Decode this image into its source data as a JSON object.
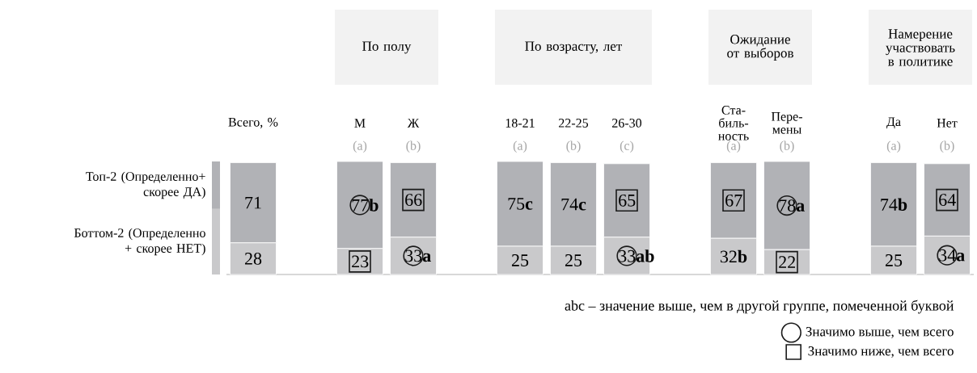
{
  "chart_data": {
    "type": "bar",
    "stacked": true,
    "legend": "bottom right",
    "tick_labels": "x",
    "categories": [
      "Всего, %",
      null,
      "М",
      "Ж",
      null,
      "18-21",
      "22-25",
      "26-30",
      null,
      "Ста-биль-ность",
      "Пере-мены",
      null,
      "Да",
      "Нет"
    ],
    "series": [
      {
        "name": "Боттом-2 (Определенно + скорее НЕТ)",
        "color": "#c9c9cb",
        "values": [
          28,
          null,
          23,
          33,
          null,
          25,
          25,
          33,
          null,
          32,
          22,
          null,
          25,
          34
        ],
        "value_labels": [
          "28",
          null,
          "23",
          "33**a**",
          null,
          "25",
          "25",
          "33**ab**",
          null,
          "32**b**",
          "22",
          null,
          "25",
          "34**a**"
        ]
      },
      {
        "name": "Топ-2 (Определенно+ скорее ДА)",
        "color": "#b1b2b6",
        "values": [
          71,
          null,
          77,
          66,
          null,
          75,
          74,
          65,
          null,
          67,
          78,
          null,
          74,
          64
        ],
        "value_labels": [
          "71",
          null,
          "77**b**",
          "66",
          null,
          "75**c**",
          "74**c**",
          "65",
          null,
          "67",
          "78**a**",
          null,
          "74**b**",
          "64"
        ]
      },
      {
        "name": "Значимо выше, чем всего",
        "type": "scatter",
        "marker": "circle",
        "color": "#1a1a1a",
        "values": [
          null,
          null,
          61.5,
          16.5,
          null,
          null,
          null,
          16.5,
          null,
          null,
          61,
          null,
          null,
          17
        ]
      },
      {
        "name": "Значимо ниже, чем всего",
        "type": "scatter",
        "marker": "square",
        "color": "#1a1a1a",
        "values": [
          null,
          null,
          11.5,
          66,
          null,
          null,
          null,
          65.5,
          null,
          65.5,
          11,
          null,
          null,
          66
        ]
      }
    ],
    "annotations": [
      "По полу",
      "По возрасту, лет",
      "Ожидание от выборов",
      "Намерение участвовать в политике",
      "(a)",
      "(b)",
      "(a)",
      "(b)",
      "(c)",
      "(a)",
      "(b)",
      "(a)",
      "(b)",
      "abc – значение выше, чем в другой группе, помеченной буквой"
    ]
  }
}
